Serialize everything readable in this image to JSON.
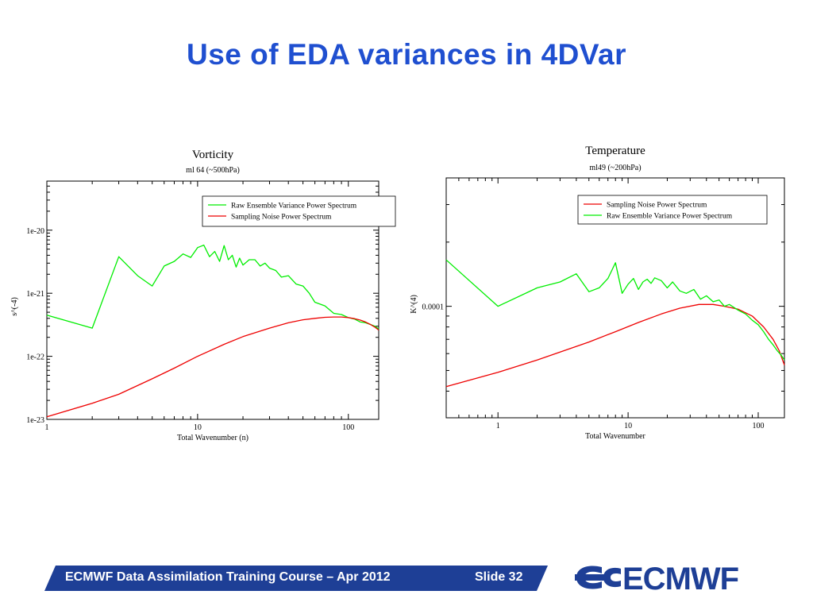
{
  "slide": {
    "title": "Use of EDA variances in 4DVar",
    "footer_text": "ECMWF Data Assimilation Training Course – Apr 2012",
    "slide_number": "Slide 32",
    "logo_text": "ECMWF"
  },
  "colors": {
    "title": "#1f4fd0",
    "footer_bar": "#1e3f96",
    "green_series": "#00ee00",
    "red_series": "#ee0000",
    "logo": "#1e3f96"
  },
  "chart_data": [
    {
      "type": "line",
      "title": "Vorticity",
      "subtitle": "ml 64 (~500hPa)",
      "xlabel": "Total Wavenumber (n)",
      "ylabel": "s^(-4)",
      "x_scale": "log",
      "y_scale": "log",
      "xlim": [
        1,
        159
      ],
      "ylim": [
        1e-23,
        6e-20
      ],
      "x_tick_labels": [
        {
          "value": 1,
          "label": "1"
        },
        {
          "value": 10,
          "label": "10"
        },
        {
          "value": 100,
          "label": "100"
        }
      ],
      "y_tick_labels": [
        {
          "value": 1e-23,
          "label": "1e-23"
        },
        {
          "value": 1e-22,
          "label": "1e-22"
        },
        {
          "value": 1e-21,
          "label": "1e-21"
        },
        {
          "value": 1e-20,
          "label": "1e-20"
        }
      ],
      "legend_position": "top-right",
      "legend": [
        "Raw Ensemble Variance Power Spectrum",
        "Sampling Noise Power Spectrum"
      ],
      "series": [
        {
          "name": "Raw Ensemble Variance Power Spectrum",
          "color": "#00ee00",
          "x": [
            1,
            2,
            3,
            4,
            5,
            6,
            7,
            8,
            9,
            10,
            11,
            12,
            13,
            14,
            15,
            16,
            17,
            18,
            19,
            20,
            22,
            24,
            26,
            28,
            30,
            33,
            36,
            40,
            45,
            50,
            55,
            60,
            70,
            80,
            90,
            100,
            110,
            120,
            130,
            140,
            150,
            159
          ],
          "y": [
            4.5e-22,
            2.8e-22,
            3.8e-21,
            1.9e-21,
            1.3e-21,
            2.7e-21,
            3.2e-21,
            4.2e-21,
            3.7e-21,
            5.3e-21,
            5.8e-21,
            3.8e-21,
            4.6e-21,
            3.2e-21,
            5.7e-21,
            3.4e-21,
            4e-21,
            2.6e-21,
            3.6e-21,
            2.8e-21,
            3.4e-21,
            3.4e-21,
            2.7e-21,
            3e-21,
            2.5e-21,
            2.3e-21,
            1.8e-21,
            1.9e-21,
            1.4e-21,
            1.3e-21,
            1e-21,
            7.2e-22,
            6.3e-22,
            4.8e-22,
            4.6e-22,
            4.1e-22,
            3.9e-22,
            3.5e-22,
            3.4e-22,
            3.2e-22,
            3e-22,
            2.7e-22
          ]
        },
        {
          "name": "Sampling Noise Power Spectrum",
          "color": "#ee0000",
          "x": [
            1,
            2,
            3,
            5,
            7,
            10,
            15,
            20,
            30,
            40,
            50,
            60,
            70,
            80,
            90,
            100,
            110,
            120,
            130,
            140,
            150,
            159
          ],
          "y": [
            1.1e-23,
            1.8e-23,
            2.5e-23,
            4.4e-23,
            6.5e-23,
            1e-22,
            1.55e-22,
            2.05e-22,
            2.8e-22,
            3.4e-22,
            3.8e-22,
            4e-22,
            4.15e-22,
            4.2e-22,
            4.2e-22,
            4.1e-22,
            3.95e-22,
            3.75e-22,
            3.5e-22,
            3.2e-22,
            2.9e-22,
            2.6e-22
          ]
        }
      ]
    },
    {
      "type": "line",
      "title": "Temperature",
      "subtitle": "ml49 (~200hPa)",
      "xlabel": "Total Wavenumber",
      "ylabel": "K^(4)",
      "x_scale": "log",
      "y_scale": "log",
      "xlim": [
        0.4,
        159
      ],
      "ylim": [
        3e-05,
        0.0004
      ],
      "x_tick_labels": [
        {
          "value": 1,
          "label": "1"
        },
        {
          "value": 10,
          "label": "10"
        },
        {
          "value": 100,
          "label": "100"
        }
      ],
      "y_tick_labels": [
        {
          "value": 0.0001,
          "label": "0.0001"
        }
      ],
      "legend_position": "top-right",
      "legend": [
        "Sampling Noise Power Spectrum",
        "Raw Ensemble Variance Power Spectrum"
      ],
      "series": [
        {
          "name": "Sampling Noise Power Spectrum",
          "color": "#ee0000",
          "x": [
            0.4,
            1,
            2,
            3,
            5,
            8,
            12,
            18,
            25,
            35,
            45,
            55,
            70,
            90,
            110,
            130,
            145,
            159
          ],
          "y": [
            4.2e-05,
            4.9e-05,
            5.6e-05,
            6.1e-05,
            6.8e-05,
            7.6e-05,
            8.4e-05,
            9.2e-05,
            9.8e-05,
            0.000102,
            0.000102,
            0.0001,
            9.7e-05,
            9e-05,
            8e-05,
            7e-05,
            6.2e-05,
            5.3e-05
          ]
        },
        {
          "name": "Raw Ensemble Variance Power Spectrum",
          "color": "#00ee00",
          "x": [
            0.4,
            1,
            2,
            3,
            4,
            5,
            6,
            7,
            8,
            9,
            10,
            11,
            12,
            13,
            14,
            15,
            16,
            18,
            20,
            22,
            25,
            28,
            32,
            36,
            40,
            45,
            50,
            55,
            60,
            70,
            80,
            90,
            100,
            110,
            120,
            130,
            140,
            150,
            159
          ],
          "y": [
            0.000165,
            0.0001,
            0.000122,
            0.00013,
            0.000142,
            0.000117,
            0.000122,
            0.000135,
            0.00016,
            0.000115,
            0.000127,
            0.000135,
            0.00012,
            0.00013,
            0.000134,
            0.000128,
            0.000136,
            0.000132,
            0.000122,
            0.00013,
            0.000118,
            0.000115,
            0.00012,
            0.000108,
            0.000112,
            0.000105,
            0.000107,
            0.0001,
            0.000102,
            9.6e-05,
            9.2e-05,
            8.6e-05,
            8.2e-05,
            7.6e-05,
            7e-05,
            6.6e-05,
            6.2e-05,
            5.9e-05,
            5.6e-05
          ]
        }
      ]
    }
  ]
}
